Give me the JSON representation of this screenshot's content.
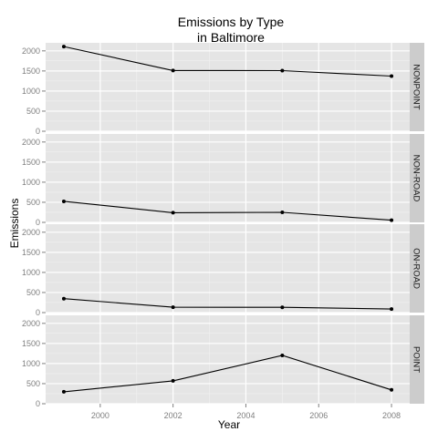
{
  "chart_data": {
    "type": "line",
    "title_line1": "Emissions by Type",
    "title_line2": "in Baltimore",
    "xlabel": "Year",
    "ylabel": "Emissions",
    "x": [
      1999,
      2002,
      2005,
      2008
    ],
    "xlim": [
      1998.5,
      2008.5
    ],
    "ylim": [
      0,
      2200
    ],
    "x_ticks": [
      2000,
      2002,
      2004,
      2006,
      2008
    ],
    "y_ticks": [
      0,
      500,
      1000,
      1500,
      2000
    ],
    "grid": true,
    "facets": [
      {
        "name": "NONPOINT",
        "values": [
          2107,
          1510,
          1509,
          1373
        ]
      },
      {
        "name": "NON-ROAD",
        "values": [
          523,
          241,
          249,
          55
        ]
      },
      {
        "name": "ON-ROAD",
        "values": [
          347,
          134,
          131,
          88
        ]
      },
      {
        "name": "POINT",
        "values": [
          297,
          570,
          1201,
          345
        ]
      }
    ],
    "colors": {
      "panel_background": "#e5e5e5",
      "grid_major": "#ffffff",
      "grid_minor": "#f2f2f2",
      "strip_background": "#cccccc",
      "line": "#000000",
      "tick_label": "#7f7f7f"
    }
  }
}
